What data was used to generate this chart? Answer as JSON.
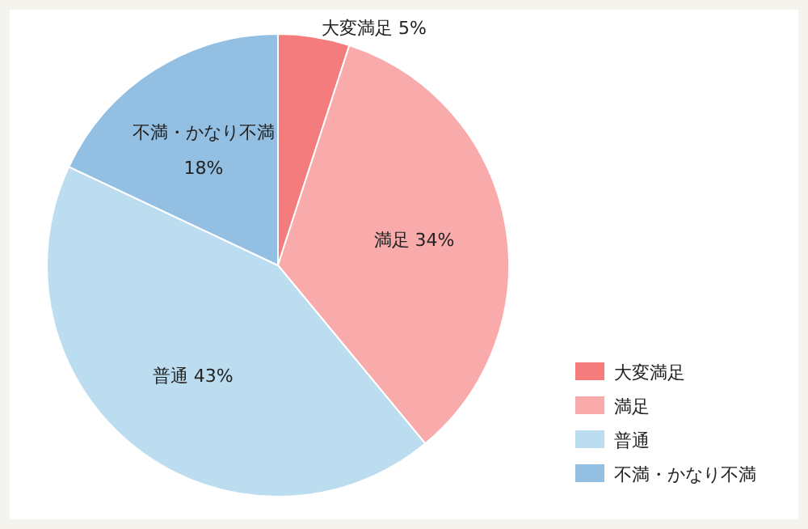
{
  "chart_data": {
    "type": "pie",
    "categories": [
      "大変満足",
      "満足",
      "普通",
      "不満・かなり不満"
    ],
    "values": [
      5,
      34,
      43,
      18
    ],
    "value_labels": [
      "5%",
      "34%",
      "43%",
      "18%"
    ],
    "colors": [
      "#f47c7c",
      "#f9abab",
      "#bcdcf0",
      "#93bfe3"
    ],
    "legend": "bottom right"
  }
}
